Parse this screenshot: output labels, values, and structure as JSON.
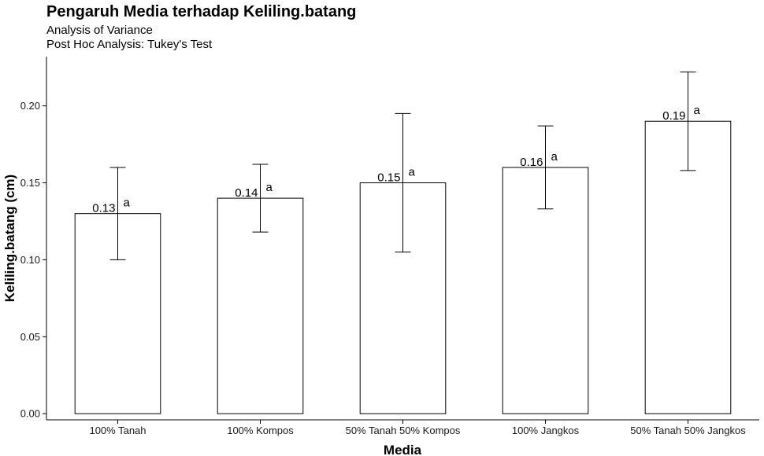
{
  "chart_data": {
    "type": "bar",
    "title": "Pengaruh Media terhadap Keliling.batang",
    "subtitle_lines": [
      "Analysis of Variance",
      "Post Hoc Analysis: Tukey's Test"
    ],
    "xlabel": "Media",
    "ylabel": "Keliling.batang (cm)",
    "categories": [
      "100% Tanah",
      "100% Kompos",
      "50% Tanah 50% Kompos",
      "100% Jangkos",
      "50% Tanah 50% Jangkos"
    ],
    "values": [
      0.13,
      0.14,
      0.15,
      0.16,
      0.19
    ],
    "value_labels": [
      "0.13",
      "0.14",
      "0.15",
      "0.16",
      "0.19"
    ],
    "error_bars": [
      {
        "low": 0.1,
        "high": 0.16
      },
      {
        "low": 0.118,
        "high": 0.162
      },
      {
        "low": 0.105,
        "high": 0.195
      },
      {
        "low": 0.133,
        "high": 0.187
      },
      {
        "low": 0.158,
        "high": 0.222
      }
    ],
    "group_letters": [
      "a",
      "a",
      "a",
      "a",
      "a"
    ],
    "ylim": [
      -0.004,
      0.232
    ],
    "yticks": [
      0.0,
      0.05,
      0.1,
      0.15,
      0.2
    ],
    "ytick_labels": [
      "0.00",
      "0.05",
      "0.10",
      "0.15",
      "0.20"
    ],
    "grid": false,
    "bar_fill": "#ffffff",
    "bar_stroke": "#000000"
  }
}
